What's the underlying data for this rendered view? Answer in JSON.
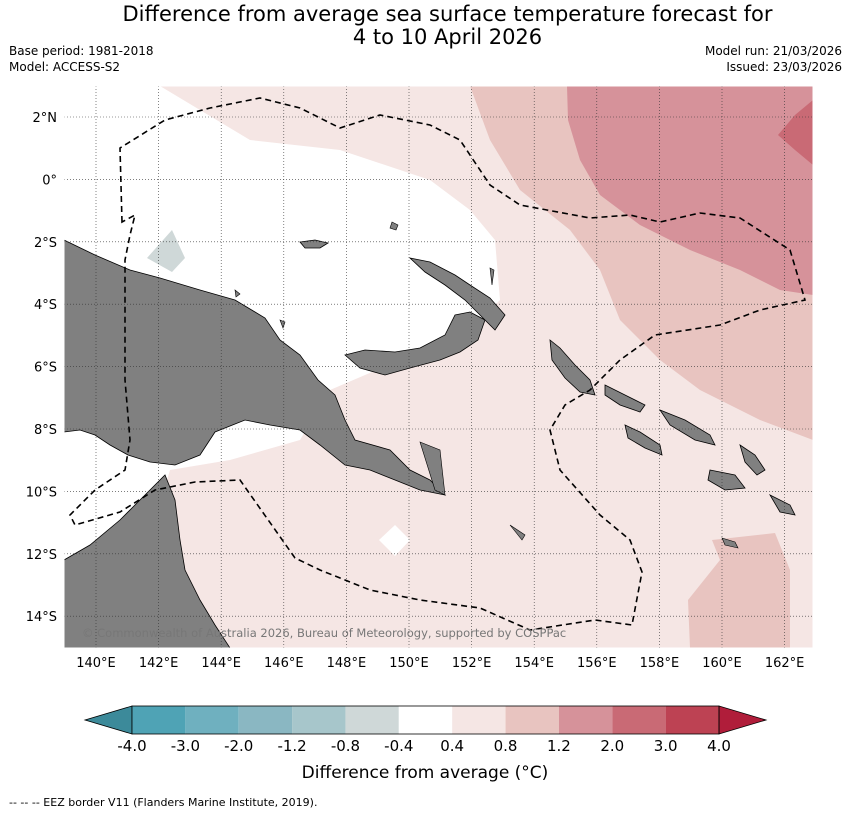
{
  "title_line1": "Difference from average sea surface temperature forecast for",
  "title_line2": "4 to 10 April 2026",
  "base_period": "Base period: 1981-2018",
  "model": "Model: ACCESS-S2",
  "model_run": "Model run: 21/03/2026",
  "issued": "Issued: 23/03/2026",
  "copyright": "© Commonwealth of Australia 2026, Bureau of Meteorology, supported by COSPPac",
  "lon_labels": [
    "140°E",
    "142°E",
    "144°E",
    "146°E",
    "148°E",
    "150°E",
    "152°E",
    "154°E",
    "156°E",
    "158°E",
    "160°E",
    "162°E"
  ],
  "lat_labels": [
    "2°N",
    "0°",
    "2°S",
    "4°S",
    "6°S",
    "8°S",
    "10°S",
    "12°S",
    "14°S"
  ],
  "colorbar": {
    "title": "Difference from average (°C)",
    "labels": [
      "-4.0",
      "-3.0",
      "-2.0",
      "-1.2",
      "-0.8",
      "-0.4",
      "0.4",
      "0.8",
      "1.2",
      "2.0",
      "3.0",
      "4.0"
    ],
    "colors": [
      "#3c8a9a",
      "#4fa3b5",
      "#6fb0bf",
      "#8ab7c2",
      "#a7c6cb",
      "#cfd8d8",
      "#ffffff",
      "#f5e6e4",
      "#e8c4c0",
      "#d6929a",
      "#c96a75",
      "#bd4253",
      "#b01d3a"
    ]
  },
  "footnote": "--  --  -- EEZ border V11 (Flanders Marine Institute, 2019)."
}
